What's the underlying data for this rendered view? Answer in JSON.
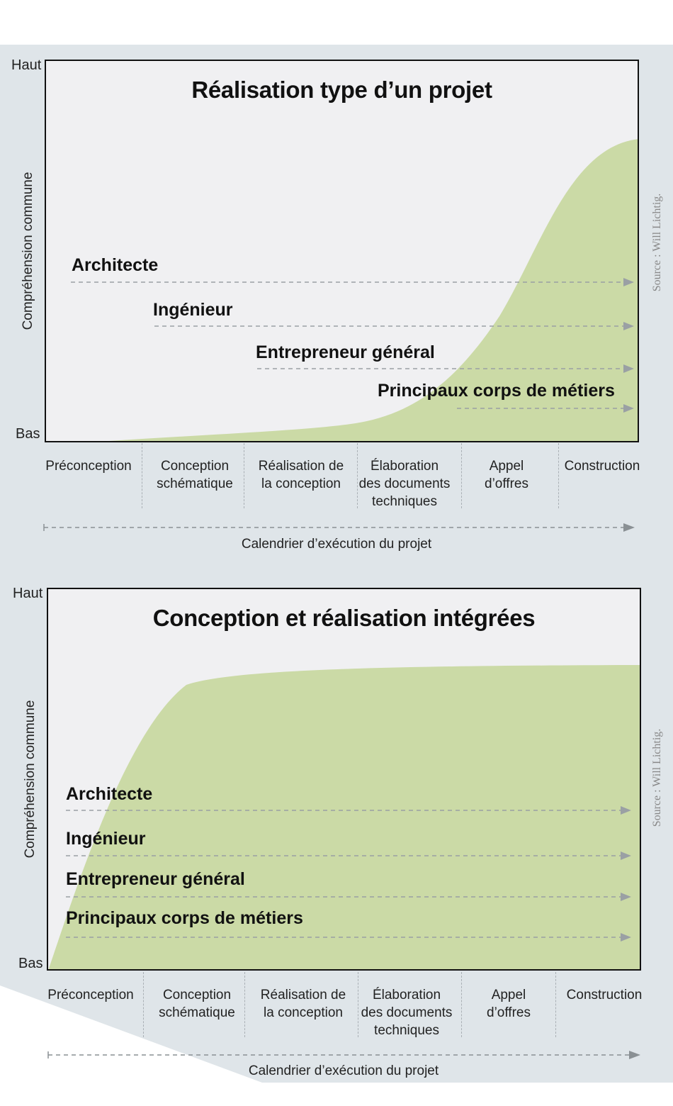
{
  "colors": {
    "background_band": "#dfe5e9",
    "plot_background": "#f0f0f2",
    "curve_fill": "#cbdaa6",
    "arrow": "#9aa0a4",
    "text": "#111111"
  },
  "axis": {
    "high": "Haut",
    "low": "Bas",
    "y_title": "Compréhension commune",
    "x_title": "Calendrier d’exécution du projet"
  },
  "phases": [
    "Préconception",
    "Conception\nschématique",
    "Réalisation de\nla conception",
    "Élaboration\ndes documents\ntechniques",
    "Appel\nd’offres",
    "Construction"
  ],
  "source": "Source : Will Lichtig.",
  "charts": [
    {
      "title": "Réalisation type d’un projet",
      "curve": "late rise",
      "roles": [
        "Architecte",
        "Ingénieur",
        "Entrepreneur général",
        "Principaux corps de métiers"
      ],
      "roles_start_phase": [
        1,
        2,
        3,
        4
      ]
    },
    {
      "title": "Conception et réalisation intégrées",
      "curve": "early rise",
      "roles": [
        "Architecte",
        "Ingénieur",
        "Entrepreneur général",
        "Principaux corps de métiers"
      ],
      "roles_start_phase": [
        1,
        1,
        1,
        1
      ]
    }
  ]
}
